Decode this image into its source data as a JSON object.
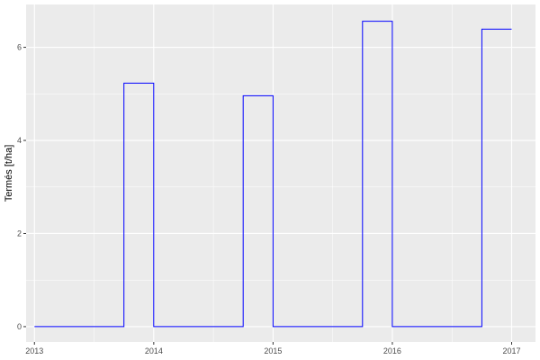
{
  "chart_data": {
    "type": "line",
    "step": true,
    "title": "",
    "xlabel": "",
    "ylabel": "Termés [t/ha]",
    "xlim": [
      2012.93,
      2017.2
    ],
    "ylim": [
      -0.33,
      6.92
    ],
    "x_ticks": [
      2013,
      2014,
      2015,
      2016,
      2017
    ],
    "y_ticks": [
      0,
      2,
      4,
      6
    ],
    "grid": true,
    "line_color": "#0000FF",
    "panel_color": "#EBEBEB",
    "series": [
      {
        "x": [
          2013.0,
          2013.75,
          2013.75,
          2014.0,
          2014.0,
          2014.75,
          2014.75,
          2015.0,
          2015.0,
          2015.75,
          2015.75,
          2016.0,
          2016.0,
          2016.75,
          2016.75,
          2017.0
        ],
        "y": [
          0,
          0,
          5.23,
          5.23,
          0,
          0,
          4.96,
          4.96,
          0,
          0,
          6.56,
          6.56,
          0,
          0,
          6.39,
          6.39
        ]
      }
    ]
  }
}
